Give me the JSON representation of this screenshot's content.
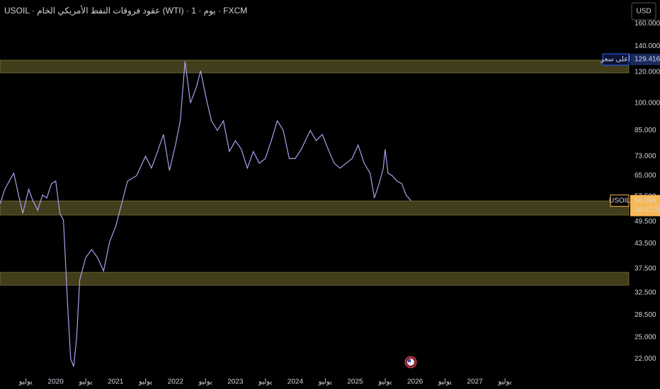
{
  "chart_data": {
    "type": "line",
    "title": "USOIL · عقود فروقات النفط الأمريكي الخام (WTI) · 1 · يوم · FXCM",
    "currency": "USD",
    "log_scale": true,
    "grid": false,
    "xlim": [
      2019.07,
      2029.57
    ],
    "ylim": [
      20,
      184
    ],
    "yticks": [
      {
        "value": 160,
        "label": "160.000"
      },
      {
        "value": 140,
        "label": "140.000"
      },
      {
        "value": 120,
        "label": "120.000"
      },
      {
        "value": 100,
        "label": "100.000"
      },
      {
        "value": 85,
        "label": "85.000"
      },
      {
        "value": 73,
        "label": "73.000"
      },
      {
        "value": 65,
        "label": "65.000"
      },
      {
        "value": 57.5,
        "label": "57.500"
      },
      {
        "value": 49.5,
        "label": "49.500"
      },
      {
        "value": 43.5,
        "label": "43.500"
      },
      {
        "value": 37.5,
        "label": "37.500"
      },
      {
        "value": 32.5,
        "label": "32.500"
      },
      {
        "value": 28.5,
        "label": "28.500"
      },
      {
        "value": 25,
        "label": "25.000"
      },
      {
        "value": 22,
        "label": "22.000"
      }
    ],
    "xticks": [
      {
        "value": 2019.5,
        "label": "يوليو"
      },
      {
        "value": 2020,
        "label": "2020"
      },
      {
        "value": 2020.5,
        "label": "يوليو"
      },
      {
        "value": 2021,
        "label": "2021"
      },
      {
        "value": 2021.5,
        "label": "يوليو"
      },
      {
        "value": 2022,
        "label": "2022"
      },
      {
        "value": 2022.5,
        "label": "يوليو"
      },
      {
        "value": 2023,
        "label": "2023"
      },
      {
        "value": 2023.5,
        "label": "يوليو"
      },
      {
        "value": 2024,
        "label": "2024"
      },
      {
        "value": 2024.5,
        "label": "يوليو"
      },
      {
        "value": 2025,
        "label": "2025"
      },
      {
        "value": 2025.5,
        "label": "يوليو"
      },
      {
        "value": 2026,
        "label": "2026"
      },
      {
        "value": 2026.5,
        "label": "يوليو"
      },
      {
        "value": 2027,
        "label": "2027"
      },
      {
        "value": 2027.5,
        "label": "يوليو"
      }
    ],
    "series": [
      {
        "name": "USOIL",
        "color": "#a9a0ec",
        "x": [
          2019.07,
          2019.15,
          2019.25,
          2019.3,
          2019.38,
          2019.45,
          2019.55,
          2019.62,
          2019.7,
          2019.78,
          2019.85,
          2019.93,
          2020.0,
          2020.07,
          2020.13,
          2020.2,
          2020.25,
          2020.3,
          2020.35,
          2020.4,
          2020.5,
          2020.6,
          2020.7,
          2020.8,
          2020.9,
          2021.0,
          2021.1,
          2021.2,
          2021.35,
          2021.5,
          2021.6,
          2021.7,
          2021.8,
          2021.9,
          2022.0,
          2022.08,
          2022.16,
          2022.25,
          2022.35,
          2022.42,
          2022.5,
          2022.6,
          2022.7,
          2022.8,
          2022.9,
          2023.0,
          2023.1,
          2023.2,
          2023.3,
          2023.4,
          2023.5,
          2023.6,
          2023.7,
          2023.8,
          2023.9,
          2024.0,
          2024.1,
          2024.25,
          2024.35,
          2024.45,
          2024.55,
          2024.65,
          2024.75,
          2024.85,
          2024.95,
          2025.05,
          2025.15,
          2025.25,
          2025.32,
          2025.4,
          2025.47,
          2025.5,
          2025.55,
          2025.62,
          2025.7,
          2025.78,
          2025.85,
          2025.93
        ],
        "values": [
          55,
          60,
          64,
          66,
          58,
          52,
          60,
          56,
          53,
          58,
          57,
          62,
          63,
          52,
          50,
          30,
          22,
          21,
          25,
          35,
          40,
          42,
          40,
          37,
          44,
          48,
          55,
          63,
          65,
          73,
          68,
          75,
          83,
          67,
          78,
          90,
          128,
          100,
          110,
          121,
          105,
          90,
          85,
          90,
          75,
          80,
          76,
          68,
          75,
          70,
          72,
          80,
          90,
          85,
          72,
          72,
          76,
          85,
          80,
          83,
          76,
          70,
          68,
          70,
          72,
          78,
          70,
          66,
          57,
          62,
          68,
          76,
          66,
          65,
          63,
          62,
          58,
          56.094
        ]
      }
    ],
    "zones": [
      [
        119.5,
        128.9
      ],
      [
        51.5,
        56.0
      ],
      [
        34.0,
        36.7
      ]
    ],
    "zone_color": "rgba(120,112,50,0.55)",
    "high": {
      "label": "أعلى سعر",
      "value": 129.416,
      "value_label": "129.416"
    },
    "last": {
      "value": 56.094,
      "value_label": "56.094",
      "countdown": "16:47:25"
    }
  }
}
